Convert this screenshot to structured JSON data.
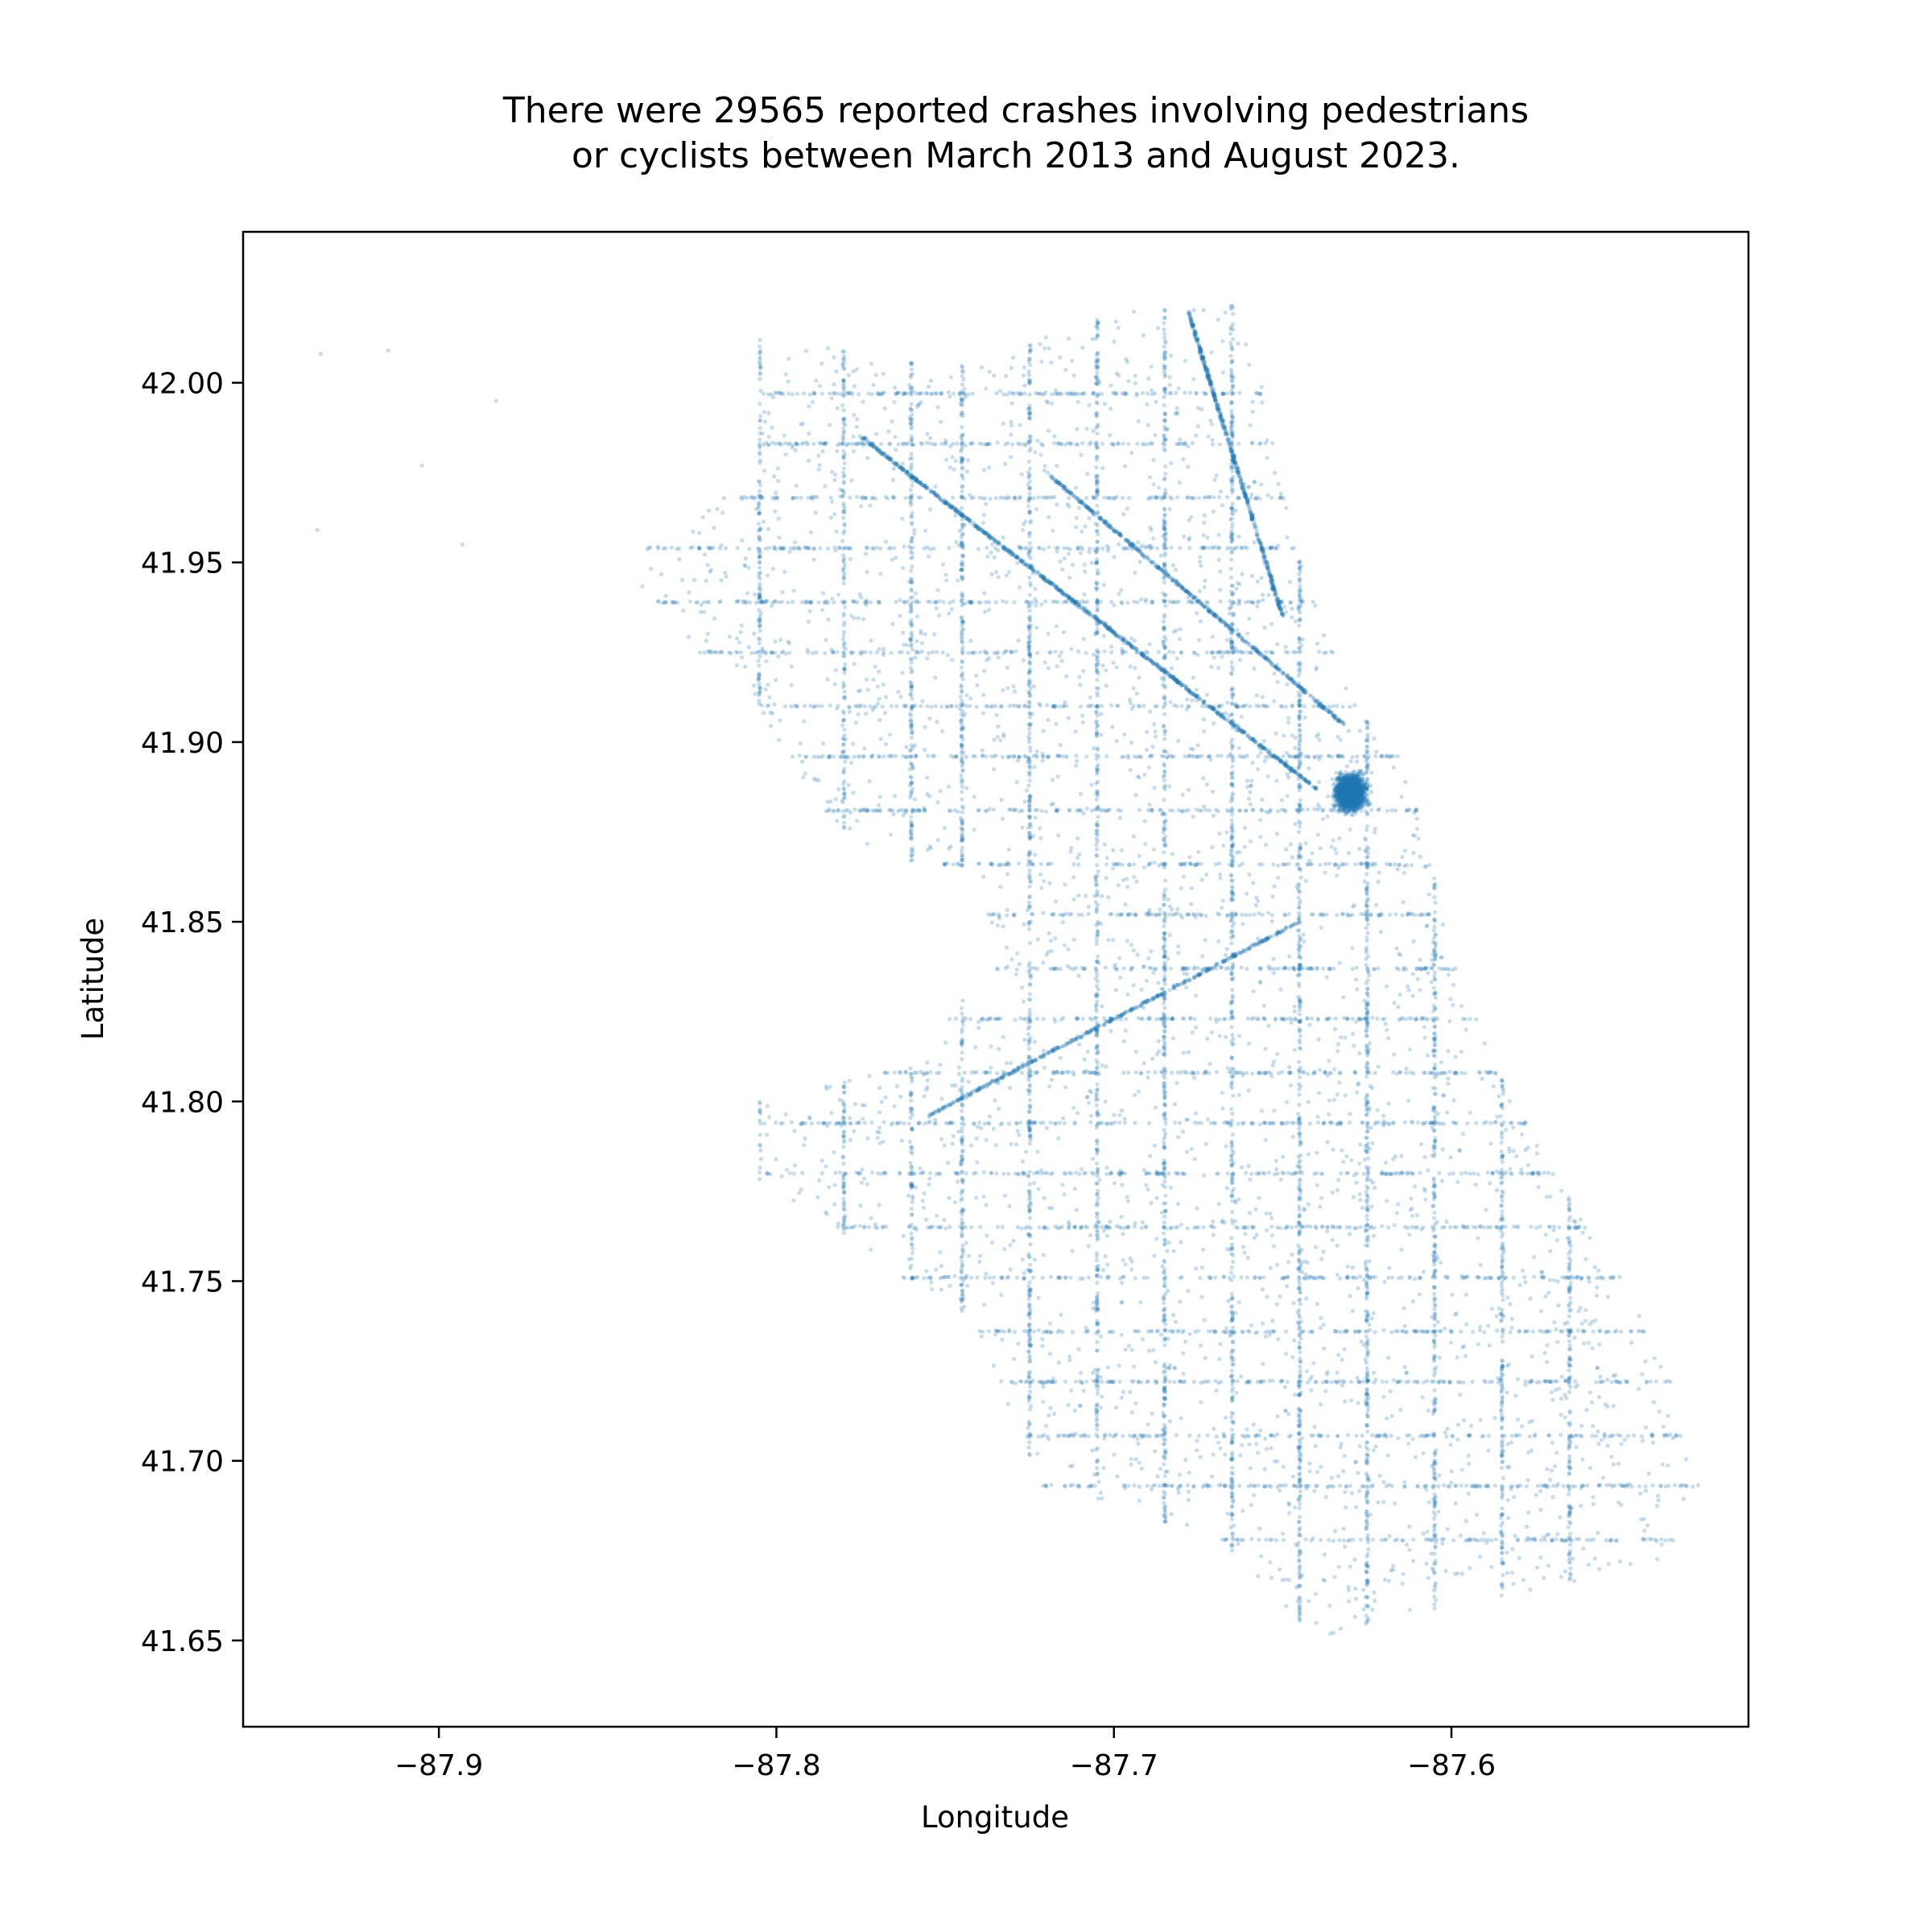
{
  "chart_data": {
    "type": "scatter",
    "title": [
      "There were 29565 reported crashes involving pedestrians",
      "or cyclists between March 2013 and August 2023."
    ],
    "xlabel": "Longitude",
    "ylabel": "Latitude",
    "xlim": [
      -87.958,
      -87.512
    ],
    "ylim": [
      41.626,
      42.042
    ],
    "x_ticks": [
      -87.9,
      -87.8,
      -87.7,
      -87.6
    ],
    "x_tick_labels": [
      "−87.9",
      "−87.8",
      "−87.7",
      "−87.6"
    ],
    "y_ticks": [
      41.65,
      41.7,
      41.75,
      41.8,
      41.85,
      41.9,
      41.95,
      42.0
    ],
    "y_tick_labels": [
      "41.65",
      "41.70",
      "41.75",
      "41.80",
      "41.85",
      "41.90",
      "41.95",
      "42.00"
    ],
    "grid": false,
    "legend": null,
    "point_color": "#1f77b4",
    "point_alpha": 0.25,
    "total_points": 29565,
    "sample_note_points": [
      [
        -87.905,
        41.977
      ],
      [
        -87.883,
        41.995
      ],
      [
        -87.935,
        42.008
      ],
      [
        -87.915,
        42.009
      ],
      [
        -87.936,
        41.959
      ],
      [
        -87.893,
        41.955
      ],
      [
        -87.628,
        41.888
      ],
      [
        -87.632,
        41.892
      ],
      [
        -87.626,
        41.88
      ],
      [
        -87.64,
        41.885
      ],
      [
        -87.62,
        41.892
      ],
      [
        -87.65,
        41.885
      ],
      [
        -87.59,
        41.8
      ],
      [
        -87.53,
        41.652
      ],
      [
        -87.6,
        41.696
      ],
      [
        -87.643,
        41.662
      ]
    ]
  }
}
